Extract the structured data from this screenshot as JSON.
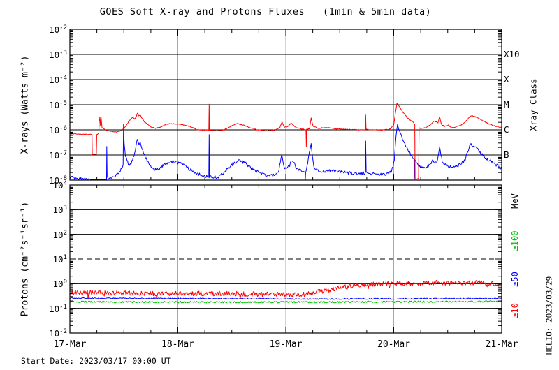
{
  "title": "GOES Soft X-ray and Protons Fluxes   (1min & 5min data)",
  "footer": {
    "start_date_label": "Start Date: 2023/03/17 00:00 UT"
  },
  "watermark": {
    "helio_label": "HELIO: 2023/03/29"
  },
  "colors": {
    "xray_long": "#ff0000",
    "xray_short": "#0000ff",
    "protons_ge10": "#ff0000",
    "protons_ge50": "#0000ff",
    "protons_ge100": "#00c000",
    "grid": "#000000",
    "day_gridline": "#a9a9a9",
    "background": "#ffffff"
  },
  "chart_data": [
    {
      "type": "line",
      "panel": "xray",
      "ylabel": "X-rays (Watts m⁻²)",
      "ylabel_right": "Xray Class",
      "xlabel": "",
      "x_categories": [
        "17-Mar",
        "18-Mar",
        "19-Mar",
        "20-Mar",
        "21-Mar"
      ],
      "xlim_days": [
        0,
        4
      ],
      "ylim": [
        1e-08,
        0.01
      ],
      "y_tick_exponents": [
        -2,
        -3,
        -4,
        -5,
        -6,
        -7,
        -8
      ],
      "gridline_exponents": [
        -3,
        -4,
        -5,
        -6,
        -7
      ],
      "day_gridlines": [
        1,
        2,
        3
      ],
      "grid": true,
      "class_labels": [
        {
          "text": "X10",
          "exp": -3
        },
        {
          "text": "X",
          "exp": -4
        },
        {
          "text": "M",
          "exp": -5
        },
        {
          "text": "C",
          "exp": -6
        },
        {
          "text": "B",
          "exp": -7
        }
      ],
      "series": [
        {
          "name": "xray-short-wave",
          "color": "#0000ff",
          "noise": 0.06,
          "seed": 23,
          "points": [
            [
              0,
              1.35e-08
            ],
            [
              0.07,
              1.05e-08
            ],
            [
              0.14,
              1.2e-08
            ],
            [
              0.2,
              9e-09
            ],
            [
              0.34,
              8.5e-09
            ],
            [
              0.342,
              2.2e-07
            ],
            [
              0.345,
              1.2e-08
            ],
            [
              0.4,
              1.35e-08
            ],
            [
              0.46,
              2e-08
            ],
            [
              0.493,
              4e-08
            ],
            [
              0.497,
              1.7e-06
            ],
            [
              0.503,
              3e-07
            ],
            [
              0.515,
              9e-08
            ],
            [
              0.535,
              5e-08
            ],
            [
              0.555,
              3.6e-08
            ],
            [
              0.575,
              6e-08
            ],
            [
              0.6,
              1.1e-07
            ],
            [
              0.625,
              4.2e-07
            ],
            [
              0.64,
              2.6e-07
            ],
            [
              0.652,
              3.2e-07
            ],
            [
              0.668,
              1.6e-07
            ],
            [
              0.7,
              8e-08
            ],
            [
              0.74,
              4e-08
            ],
            [
              0.78,
              2.6e-08
            ],
            [
              0.83,
              2.8e-08
            ],
            [
              0.88,
              4.5e-08
            ],
            [
              0.94,
              5.5e-08
            ],
            [
              1.0,
              5e-08
            ],
            [
              1.06,
              4e-08
            ],
            [
              1.12,
              2.6e-08
            ],
            [
              1.18,
              1.8e-08
            ],
            [
              1.24,
              1.45e-08
            ],
            [
              1.287,
              1.4e-08
            ],
            [
              1.29,
              6.5e-07
            ],
            [
              1.293,
              1.4e-08
            ],
            [
              1.37,
              1.3e-08
            ],
            [
              1.44,
              2.2e-08
            ],
            [
              1.51,
              4.5e-08
            ],
            [
              1.57,
              6.2e-08
            ],
            [
              1.63,
              4.6e-08
            ],
            [
              1.7,
              2.6e-08
            ],
            [
              1.78,
              1.7e-08
            ],
            [
              1.86,
              1.5e-08
            ],
            [
              1.93,
              1.9e-08
            ],
            [
              1.962,
              9e-08
            ],
            [
              1.99,
              3e-08
            ],
            [
              2.03,
              3.5e-08
            ],
            [
              2.06,
              6.5e-08
            ],
            [
              2.1,
              3e-08
            ],
            [
              2.15,
              2.2e-08
            ],
            [
              2.178,
              2e-08
            ],
            [
              2.181,
              1e-09
            ],
            [
              2.184,
              2e-08
            ],
            [
              2.235,
              2.6e-07
            ],
            [
              2.26,
              3e-08
            ],
            [
              2.33,
              2.1e-08
            ],
            [
              2.41,
              2.4e-08
            ],
            [
              2.5,
              2.2e-08
            ],
            [
              2.6,
              1.9e-08
            ],
            [
              2.7,
              1.8e-08
            ],
            [
              2.737,
              2e-08
            ],
            [
              2.74,
              3.6e-07
            ],
            [
              2.745,
              2e-08
            ],
            [
              2.83,
              1.7e-08
            ],
            [
              2.92,
              1.6e-08
            ],
            [
              2.98,
              2.2e-08
            ],
            [
              3.005,
              6e-08
            ],
            [
              3.02,
              5e-07
            ],
            [
              3.035,
              1.7e-06
            ],
            [
              3.055,
              9e-07
            ],
            [
              3.09,
              3.5e-07
            ],
            [
              3.13,
              1.6e-07
            ],
            [
              3.17,
              9e-08
            ],
            [
              3.187,
              7e-08
            ],
            [
              3.19,
              1e-09
            ],
            [
              3.193,
              6e-08
            ],
            [
              3.24,
              3.5e-08
            ],
            [
              3.3,
              3e-08
            ],
            [
              3.36,
              6e-08
            ],
            [
              3.4,
              5e-08
            ],
            [
              3.425,
              1.9e-07
            ],
            [
              3.45,
              5.5e-08
            ],
            [
              3.49,
              3.6e-08
            ],
            [
              3.55,
              3e-08
            ],
            [
              3.61,
              4e-08
            ],
            [
              3.66,
              6.5e-08
            ],
            [
              3.71,
              2.6e-07
            ],
            [
              3.75,
              2.2e-07
            ],
            [
              3.8,
              1.3e-07
            ],
            [
              3.86,
              7e-08
            ],
            [
              3.93,
              4.6e-08
            ],
            [
              4.0,
              2.8e-08
            ]
          ]
        },
        {
          "name": "xray-long-wave",
          "color": "#ff0000",
          "noise": 0.015,
          "seed": 11,
          "points": [
            [
              0,
              7e-07
            ],
            [
              0.06,
              6.9e-07
            ],
            [
              0.12,
              6.6e-07
            ],
            [
              0.18,
              6.5e-07
            ],
            [
              0.205,
              6.5e-07
            ],
            [
              0.208,
              1.05e-07
            ],
            [
              0.245,
              1.05e-07
            ],
            [
              0.249,
              6.6e-07
            ],
            [
              0.268,
              7e-07
            ],
            [
              0.272,
              2.1e-06
            ],
            [
              0.278,
              3.3e-06
            ],
            [
              0.283,
              1.5e-06
            ],
            [
              0.289,
              3.1e-06
            ],
            [
              0.298,
              1.2e-06
            ],
            [
              0.33,
              1e-06
            ],
            [
              0.38,
              8.8e-07
            ],
            [
              0.43,
              8.3e-07
            ],
            [
              0.47,
              9.2e-07
            ],
            [
              0.5,
              1.1e-06
            ],
            [
              0.53,
              1.7e-06
            ],
            [
              0.56,
              2.6e-06
            ],
            [
              0.585,
              3.1e-06
            ],
            [
              0.6,
              2.75e-06
            ],
            [
              0.615,
              3.3e-06
            ],
            [
              0.625,
              4.6e-06
            ],
            [
              0.638,
              3.6e-06
            ],
            [
              0.652,
              3.9e-06
            ],
            [
              0.665,
              3.1e-06
            ],
            [
              0.69,
              2.1e-06
            ],
            [
              0.72,
              1.6e-06
            ],
            [
              0.76,
              1.25e-06
            ],
            [
              0.8,
              1.15e-06
            ],
            [
              0.84,
              1.3e-06
            ],
            [
              0.88,
              1.6e-06
            ],
            [
              0.93,
              1.75e-06
            ],
            [
              1.0,
              1.7e-06
            ],
            [
              1.06,
              1.55e-06
            ],
            [
              1.12,
              1.3e-06
            ],
            [
              1.17,
              1.05e-06
            ],
            [
              1.23,
              9.7e-07
            ],
            [
              1.287,
              9.6e-07
            ],
            [
              1.29,
              1.05e-05
            ],
            [
              1.293,
              9.6e-07
            ],
            [
              1.36,
              9.2e-07
            ],
            [
              1.43,
              1e-06
            ],
            [
              1.49,
              1.4e-06
            ],
            [
              1.55,
              1.75e-06
            ],
            [
              1.61,
              1.55e-06
            ],
            [
              1.67,
              1.2e-06
            ],
            [
              1.74,
              1e-06
            ],
            [
              1.82,
              9.3e-07
            ],
            [
              1.9,
              9.7e-07
            ],
            [
              1.945,
              1.25e-06
            ],
            [
              1.965,
              2.1e-06
            ],
            [
              1.985,
              1.25e-06
            ],
            [
              2.02,
              1.35e-06
            ],
            [
              2.05,
              1.9e-06
            ],
            [
              2.085,
              1.3e-06
            ],
            [
              2.12,
              1.15e-06
            ],
            [
              2.165,
              1.05e-06
            ],
            [
              2.187,
              1e-06
            ],
            [
              2.19,
              2.2e-07
            ],
            [
              2.193,
              1.05e-06
            ],
            [
              2.22,
              1.1e-06
            ],
            [
              2.235,
              2.9e-06
            ],
            [
              2.252,
              1.4e-06
            ],
            [
              2.3,
              1.15e-06
            ],
            [
              2.38,
              1.25e-06
            ],
            [
              2.46,
              1.1e-06
            ],
            [
              2.56,
              1.05e-06
            ],
            [
              2.65,
              1e-06
            ],
            [
              2.72,
              1e-06
            ],
            [
              2.737,
              1.05e-06
            ],
            [
              2.74,
              3.9e-06
            ],
            [
              2.744,
              1.05e-06
            ],
            [
              2.82,
              1e-06
            ],
            [
              2.9,
              9.8e-07
            ],
            [
              2.97,
              1.1e-06
            ],
            [
              3.0,
              1.6e-06
            ],
            [
              3.015,
              4.5e-06
            ],
            [
              3.03,
              1.15e-05
            ],
            [
              3.05,
              8.5e-06
            ],
            [
              3.09,
              4.6e-06
            ],
            [
              3.13,
              2.9e-06
            ],
            [
              3.17,
              2.2e-06
            ],
            [
              3.195,
              1.7e-06
            ],
            [
              3.198,
              1.1e-08
            ],
            [
              3.23,
              1.1e-08
            ],
            [
              3.235,
              1.15e-06
            ],
            [
              3.29,
              1.2e-06
            ],
            [
              3.34,
              1.6e-06
            ],
            [
              3.375,
              2.3e-06
            ],
            [
              3.41,
              1.9e-06
            ],
            [
              3.425,
              3.4e-06
            ],
            [
              3.44,
              1.7e-06
            ],
            [
              3.47,
              1.35e-06
            ],
            [
              3.505,
              1.55e-06
            ],
            [
              3.54,
              1.2e-06
            ],
            [
              3.6,
              1.4e-06
            ],
            [
              3.645,
              1.75e-06
            ],
            [
              3.685,
              2.7e-06
            ],
            [
              3.72,
              3.7e-06
            ],
            [
              3.76,
              3.3e-06
            ],
            [
              3.81,
              2.5e-06
            ],
            [
              3.86,
              1.9e-06
            ],
            [
              3.92,
              1.5e-06
            ],
            [
              3.97,
              1.3e-06
            ],
            [
              4.0,
              1.25e-06
            ]
          ]
        }
      ]
    },
    {
      "type": "line",
      "panel": "protons",
      "ylabel": "Protons (cm⁻²s⁻¹sr⁻¹)",
      "ylabel_right": "MeV",
      "xlabel": "",
      "x_categories": [
        "17-Mar",
        "18-Mar",
        "19-Mar",
        "20-Mar",
        "21-Mar"
      ],
      "xlim_days": [
        0,
        4
      ],
      "ylim": [
        0.01,
        10000.0
      ],
      "y_tick_exponents": [
        4,
        3,
        2,
        1,
        0,
        -1,
        -2
      ],
      "gridline_exponents": [
        3,
        2,
        0,
        -1
      ],
      "dashed_exponent": 1,
      "day_gridlines": [
        1,
        2,
        3
      ],
      "grid": true,
      "legend": [
        {
          "text": "MeV",
          "color": "#000000"
        },
        {
          "text": "≥100",
          "color": "#00c000"
        },
        {
          "text": "≥50",
          "color": "#0000ff"
        },
        {
          "text": "≥10",
          "color": "#ff0000"
        }
      ],
      "series": [
        {
          "name": "protons-ge10",
          "color": "#ff0000",
          "noise": 0.1,
          "seed": 31,
          "points": [
            [
              0,
              0.44
            ],
            [
              0.5,
              0.42
            ],
            [
              1.0,
              0.4
            ],
            [
              1.5,
              0.4
            ],
            [
              1.9,
              0.36
            ],
            [
              2.1,
              0.35
            ],
            [
              2.25,
              0.42
            ],
            [
              2.4,
              0.56
            ],
            [
              2.55,
              0.74
            ],
            [
              2.7,
              0.88
            ],
            [
              2.85,
              0.96
            ],
            [
              3.0,
              1.02
            ],
            [
              3.2,
              1.06
            ],
            [
              3.4,
              1.1
            ],
            [
              3.6,
              1.05
            ],
            [
              3.8,
              1.1
            ],
            [
              3.95,
              0.96
            ],
            [
              4.0,
              0.92
            ]
          ]
        },
        {
          "name": "protons-ge50",
          "color": "#0000ff",
          "noise": 0.022,
          "seed": 41,
          "points": [
            [
              0,
              0.26
            ],
            [
              0.8,
              0.25
            ],
            [
              1.6,
              0.245
            ],
            [
              2.4,
              0.24
            ],
            [
              3.2,
              0.245
            ],
            [
              4.0,
              0.25
            ]
          ]
        },
        {
          "name": "protons-ge100",
          "color": "#00c000",
          "noise": 0.035,
          "seed": 53,
          "points": [
            [
              0,
              0.185
            ],
            [
              0.8,
              0.18
            ],
            [
              1.6,
              0.178
            ],
            [
              2.4,
              0.18
            ],
            [
              3.2,
              0.185
            ],
            [
              4.0,
              0.19
            ]
          ]
        }
      ]
    }
  ]
}
